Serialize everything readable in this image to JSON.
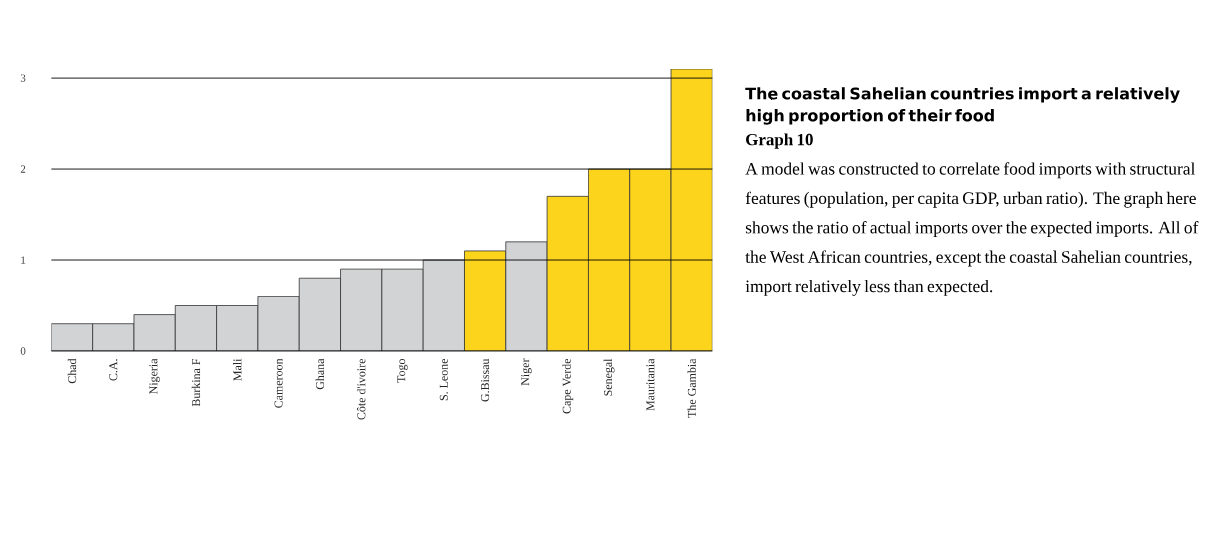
{
  "chart_data": {
    "type": "bar",
    "title": "The coastal Sahelian countries import a relatively high proportion of their food",
    "subtitle": "Graph 10",
    "categories": [
      "Chad",
      "C.A.",
      "Nigeria",
      "Burkina F",
      "Mali",
      "Cameroon",
      "Ghana",
      "Côte d'ivoire",
      "Togo",
      "S. Leone",
      "G.Bissau",
      "Niger",
      "Cape Verde",
      "Senegal",
      "Mauritania",
      "The Gambia"
    ],
    "values": [
      0.3,
      0.3,
      0.4,
      0.5,
      0.5,
      0.6,
      0.8,
      0.9,
      0.9,
      1.0,
      1.1,
      1.2,
      1.7,
      2.0,
      2.0,
      3.1
    ],
    "colors": [
      "#d1d3d4",
      "#d1d3d4",
      "#d1d3d4",
      "#d1d3d4",
      "#d1d3d4",
      "#d1d3d4",
      "#d1d3d4",
      "#d1d3d4",
      "#d1d3d4",
      "#d1d3d4",
      "#fdd41c",
      "#d1d3d4",
      "#fdd41c",
      "#fdd41c",
      "#fdd41c",
      "#fdd41c"
    ],
    "ylim": [
      0,
      3.1
    ],
    "yticks": [
      0,
      1,
      2,
      3
    ],
    "grid": "y",
    "annotations": [
      "A model was constructed to correlate food imports with structural features (population, per capita GDP, urban ratio). The graph here shows the ratio of actual imports over the expected imports. All of the West African countries, except the coastal Sahelian countries, import relatively less than expected."
    ]
  }
}
